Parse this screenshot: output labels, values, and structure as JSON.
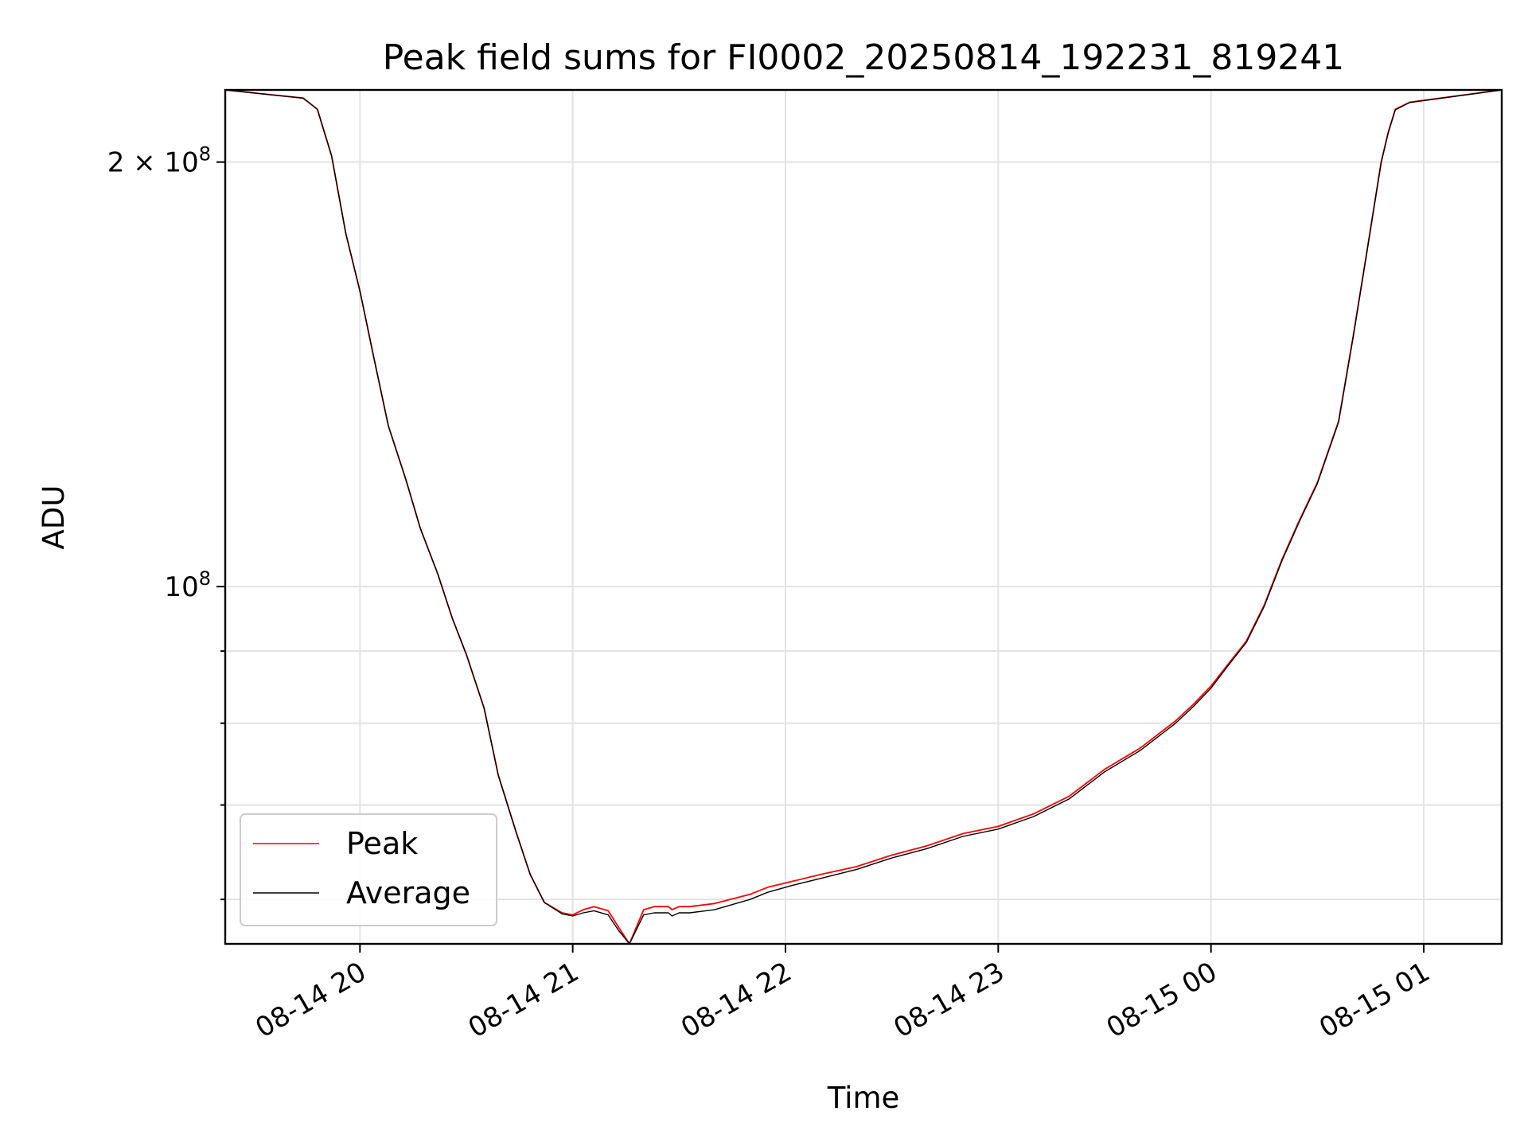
{
  "chart_data": {
    "type": "line",
    "title": "Peak field sums for FI0002_20250814_192231_819241",
    "xlabel": "Time",
    "ylabel": "ADU",
    "yscale": "log",
    "grid": true,
    "legend_position": "lower-left",
    "x_ticks": [
      "08-14 20",
      "08-14 21",
      "08-14 22",
      "08-14 23",
      "08-15 00",
      "08-15 01"
    ],
    "y_ticks": [
      {
        "value": 100000000,
        "mantissa": "",
        "base": "10",
        "exponent": "8"
      },
      {
        "value": 200000000,
        "mantissa": "2 × ",
        "base": "10",
        "exponent": "8"
      }
    ],
    "xlim": [
      "2025-08-14 19:22",
      "2025-08-15 01:22"
    ],
    "ylim": [
      55800000,
      225000000
    ],
    "series": [
      {
        "name": "Peak",
        "color": "#ff0000",
        "x": [
          "2025-08-14 19:22",
          "2025-08-14 19:44",
          "2025-08-14 19:48",
          "2025-08-14 19:52",
          "2025-08-14 19:56",
          "2025-08-14 20:00",
          "2025-08-14 20:04",
          "2025-08-14 20:08",
          "2025-08-14 20:13",
          "2025-08-14 20:17",
          "2025-08-14 20:22",
          "2025-08-14 20:26",
          "2025-08-14 20:30",
          "2025-08-14 20:35",
          "2025-08-14 20:39",
          "2025-08-14 20:44",
          "2025-08-14 20:48",
          "2025-08-14 20:52",
          "2025-08-14 20:57",
          "2025-08-14 21:00",
          "2025-08-14 21:03",
          "2025-08-14 21:06",
          "2025-08-14 21:10",
          "2025-08-14 21:13",
          "2025-08-14 21:16",
          "2025-08-14 21:20",
          "2025-08-14 21:23",
          "2025-08-14 21:27",
          "2025-08-14 21:28",
          "2025-08-14 21:30",
          "2025-08-14 21:33",
          "2025-08-14 21:40",
          "2025-08-14 21:50",
          "2025-08-14 21:55",
          "2025-08-14 22:02",
          "2025-08-14 22:10",
          "2025-08-14 22:20",
          "2025-08-14 22:30",
          "2025-08-14 22:40",
          "2025-08-14 22:50",
          "2025-08-14 23:00",
          "2025-08-14 23:10",
          "2025-08-14 23:20",
          "2025-08-14 23:30",
          "2025-08-14 23:40",
          "2025-08-14 23:50",
          "2025-08-14 23:55",
          "2025-08-15 00:00",
          "2025-08-15 00:05",
          "2025-08-15 00:10",
          "2025-08-15 00:15",
          "2025-08-15 00:20",
          "2025-08-15 00:25",
          "2025-08-15 00:30",
          "2025-08-15 00:36",
          "2025-08-15 00:40",
          "2025-08-15 00:44",
          "2025-08-15 00:48",
          "2025-08-15 00:50",
          "2025-08-15 00:52",
          "2025-08-15 00:56",
          "2025-08-15 01:22"
        ],
        "values": [
          225000000,
          222000000,
          218000000,
          202000000,
          178000000,
          162000000,
          145000000,
          130000000,
          119000000,
          110000000,
          102000000,
          95000000,
          89500000,
          82000000,
          73500000,
          67000000,
          62500000,
          59700000,
          58700000,
          58500000,
          59000000,
          59300000,
          58900000,
          57300000,
          55800000,
          59000000,
          59300000,
          59300000,
          59000000,
          59300000,
          59300000,
          59600000,
          60500000,
          61200000,
          61800000,
          62500000,
          63300000,
          64500000,
          65500000,
          66800000,
          67600000,
          69000000,
          71000000,
          74200000,
          76800000,
          80300000,
          82500000,
          85000000,
          88200000,
          91500000,
          97000000,
          104500000,
          111500000,
          118500000,
          131000000,
          150000000,
          173000000,
          200000000,
          210000000,
          218000000,
          220500000,
          225000000
        ]
      },
      {
        "name": "Average",
        "color": "#000000",
        "x": [
          "2025-08-14 19:22",
          "2025-08-14 19:44",
          "2025-08-14 19:48",
          "2025-08-14 19:52",
          "2025-08-14 19:56",
          "2025-08-14 20:00",
          "2025-08-14 20:04",
          "2025-08-14 20:08",
          "2025-08-14 20:13",
          "2025-08-14 20:17",
          "2025-08-14 20:22",
          "2025-08-14 20:26",
          "2025-08-14 20:30",
          "2025-08-14 20:35",
          "2025-08-14 20:39",
          "2025-08-14 20:44",
          "2025-08-14 20:48",
          "2025-08-14 20:52",
          "2025-08-14 20:57",
          "2025-08-14 21:00",
          "2025-08-14 21:03",
          "2025-08-14 21:06",
          "2025-08-14 21:10",
          "2025-08-14 21:13",
          "2025-08-14 21:16",
          "2025-08-14 21:20",
          "2025-08-14 21:23",
          "2025-08-14 21:27",
          "2025-08-14 21:28",
          "2025-08-14 21:30",
          "2025-08-14 21:33",
          "2025-08-14 21:40",
          "2025-08-14 21:50",
          "2025-08-14 21:55",
          "2025-08-14 22:02",
          "2025-08-14 22:10",
          "2025-08-14 22:20",
          "2025-08-14 22:30",
          "2025-08-14 22:40",
          "2025-08-14 22:50",
          "2025-08-14 23:00",
          "2025-08-14 23:10",
          "2025-08-14 23:20",
          "2025-08-14 23:30",
          "2025-08-14 23:40",
          "2025-08-14 23:50",
          "2025-08-14 23:55",
          "2025-08-15 00:00",
          "2025-08-15 00:05",
          "2025-08-15 00:10",
          "2025-08-15 00:15",
          "2025-08-15 00:20",
          "2025-08-15 00:25",
          "2025-08-15 00:30",
          "2025-08-15 00:36",
          "2025-08-15 00:40",
          "2025-08-15 00:44",
          "2025-08-15 00:48",
          "2025-08-15 00:50",
          "2025-08-15 00:52",
          "2025-08-15 00:56",
          "2025-08-15 01:22"
        ],
        "values": [
          225000000,
          222000000,
          218000000,
          202000000,
          178000000,
          162000000,
          145000000,
          130000000,
          119000000,
          110000000,
          102000000,
          95000000,
          89500000,
          82000000,
          73500000,
          67000000,
          62500000,
          59700000,
          58600000,
          58400000,
          58700000,
          58900000,
          58500000,
          57000000,
          55800000,
          58500000,
          58700000,
          58700000,
          58400000,
          58700000,
          58700000,
          59000000,
          60000000,
          60700000,
          61400000,
          62100000,
          63000000,
          64200000,
          65200000,
          66500000,
          67300000,
          68700000,
          70700000,
          73900000,
          76500000,
          80000000,
          82200000,
          84700000,
          88000000,
          91300000,
          96800000,
          104300000,
          111300000,
          118300000,
          130800000,
          149800000,
          172800000,
          199800000,
          209800000,
          217800000,
          220400000,
          225000000
        ]
      }
    ]
  }
}
